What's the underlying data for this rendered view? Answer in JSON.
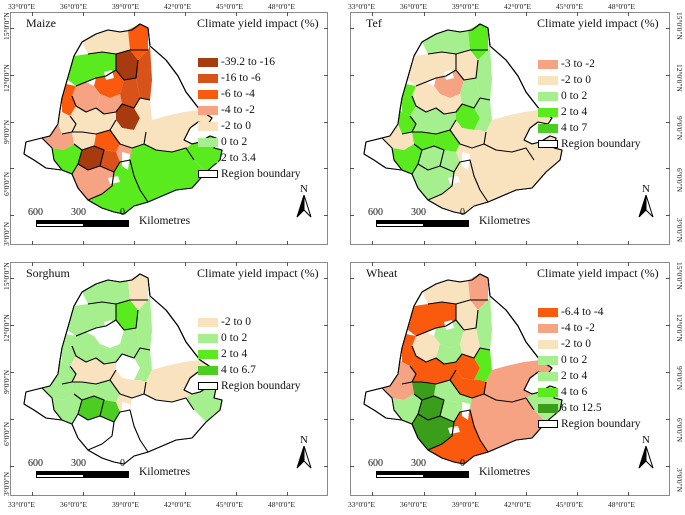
{
  "figure": {
    "legend_title": "Climate yield impact (%)",
    "region_boundary_label": "Region boundary",
    "scale": {
      "labels": [
        "600",
        "300",
        "0"
      ],
      "unit": "Kilometres"
    },
    "north_label": "N",
    "longitude_labels": [
      "33°0'0\"E",
      "36°0'0\"E",
      "39°0'0\"E",
      "42°0'0\"E",
      "45°0'0\"E",
      "48°0'0\"E"
    ],
    "latitude_labels": [
      "15°0'0\"N",
      "12°0'0\"N",
      "9°0'0\"N",
      "6°0'0\"N",
      "3°0'0\"N"
    ]
  },
  "panels": [
    {
      "title": "Maize",
      "legend": [
        {
          "label": "-39.2 to -16",
          "color": "#a83a10"
        },
        {
          "label": "-16 to -6",
          "color": "#d9521a"
        },
        {
          "label": "-6 to -4",
          "color": "#fa5a0e"
        },
        {
          "label": "-4 to -2",
          "color": "#f5a383"
        },
        {
          "label": "-2 to 0",
          "color": "#f9e3bf"
        },
        {
          "label": "0 to 2",
          "color": "#a5ef8e"
        },
        {
          "label": "2 to 3.4",
          "color": "#5aeb1e"
        }
      ]
    },
    {
      "title": "Tef",
      "legend": [
        {
          "label": "-3 to -2",
          "color": "#f5a383"
        },
        {
          "label": "-2 to 0",
          "color": "#f9e3bf"
        },
        {
          "label": "0 to 2",
          "color": "#a5ef8e"
        },
        {
          "label": "2 to 4",
          "color": "#5aeb1e"
        },
        {
          "label": "4 to 7",
          "color": "#4ccd22"
        }
      ]
    },
    {
      "title": "Sorghum",
      "legend": [
        {
          "label": "-2 to 0",
          "color": "#f9e3bf"
        },
        {
          "label": "0 to 2",
          "color": "#a5ef8e"
        },
        {
          "label": "2 to 4",
          "color": "#5aeb1e"
        },
        {
          "label": "4 to 6.7",
          "color": "#4ccd22"
        }
      ]
    },
    {
      "title": "Wheat",
      "legend": [
        {
          "label": "-6.4 to -4",
          "color": "#fa5a0e"
        },
        {
          "label": "-4 to -2",
          "color": "#f5a383"
        },
        {
          "label": "-2 to 0",
          "color": "#f9e3bf"
        },
        {
          "label": "0 to 2",
          "color": "#a5ef8e"
        },
        {
          "label": "2 to 4",
          "color": "#a5ef8e"
        },
        {
          "label": "4 to 6",
          "color": "#5aeb1e"
        },
        {
          "label": "6 to 12.5",
          "color": "#3a9e1a"
        }
      ]
    }
  ]
}
